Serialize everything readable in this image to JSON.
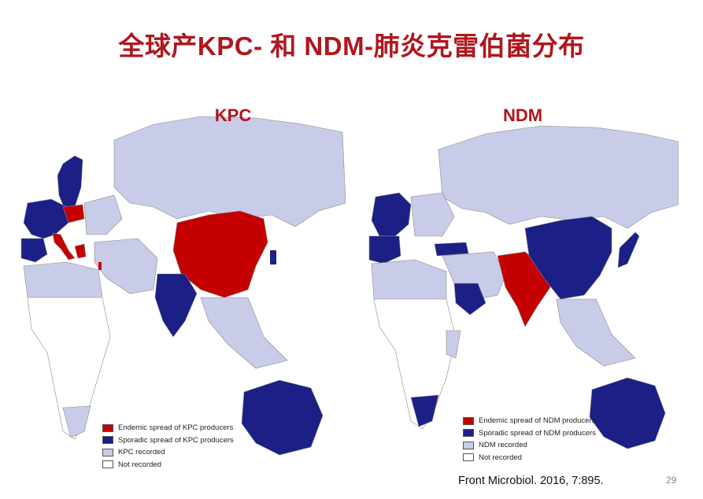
{
  "slide": {
    "title": "全球产KPC- 和 NDM-肺炎克雷伯菌分布",
    "citation": "Front Microbiol. 2016, 7:895.",
    "page_number": "29"
  },
  "colors": {
    "title": "#b0161d",
    "endemic": "#c40000",
    "sporadic": "#1c1f86",
    "recorded": "#c9cce8",
    "not_recorded": "#ffffff",
    "border": "#8a8a8a"
  },
  "maps": {
    "kpc": {
      "label": "KPC",
      "legend": [
        {
          "key": "endemic",
          "text": "Endemic spread of KPC producers"
        },
        {
          "key": "sporadic",
          "text": "Sporadic spread of KPC producers"
        },
        {
          "key": "recorded",
          "text": "KPC recorded"
        },
        {
          "key": "not_recorded",
          "text": "Not recorded"
        }
      ],
      "regions": {
        "endemic": [
          "China",
          "Italy",
          "Greece",
          "Poland",
          "Israel"
        ],
        "sporadic": [
          "India",
          "Australia",
          "Scandinavia",
          "Spain",
          "France",
          "Germany",
          "Korea"
        ],
        "recorded": [
          "Russia",
          "Southeast Asia",
          "Middle East",
          "North Africa",
          "South Africa"
        ]
      }
    },
    "ndm": {
      "label": "NDM",
      "legend": [
        {
          "key": "endemic",
          "text": "Endemic spread of NDM producers"
        },
        {
          "key": "sporadic",
          "text": "Sporadic spread of NDM producers"
        },
        {
          "key": "recorded",
          "text": "NDM recorded"
        },
        {
          "key": "not_recorded",
          "text": "Not recorded"
        }
      ],
      "regions": {
        "endemic": [
          "India",
          "Pakistan"
        ],
        "sporadic": [
          "China",
          "Japan",
          "Korea",
          "Australia",
          "Western Europe",
          "Turkey",
          "Saudi Arabia",
          "South Africa"
        ],
        "recorded": [
          "Russia",
          "Southeast Asia",
          "Middle East",
          "Eastern Europe",
          "East Africa"
        ]
      }
    }
  }
}
